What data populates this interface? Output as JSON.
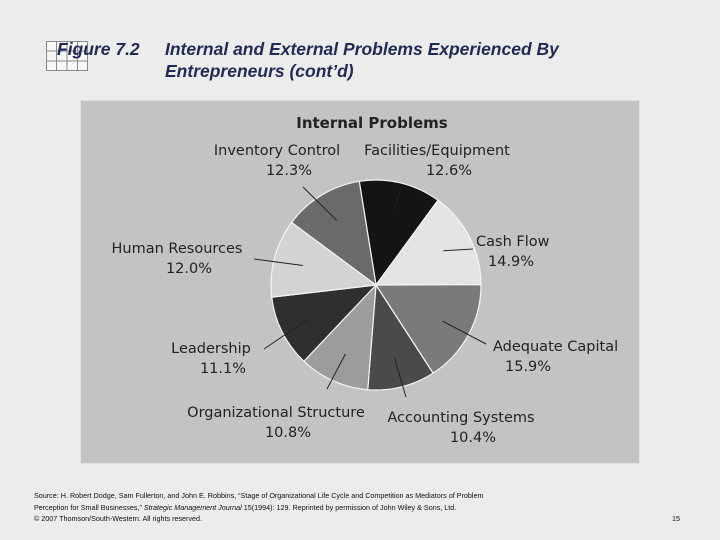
{
  "slide": {
    "title_number": "Figure 7.2",
    "title_line1": "Internal and External Problems Experienced By",
    "title_line2": "Entrepreneurs (cont’d)",
    "source_part1": "Source: H. Robert Dodge, Sam Fullerton, and John E. Robbins, “Stage of Organizational Life Cycle and Competition as Mediators of Problem",
    "source_part2a": "Perception for Small Businesses,”",
    "source_part2b": "Strategic Management Journal",
    "source_part2c": "15(1994): 129. Reprinted by permission of John Wiley & Sons, Ltd.",
    "copyright": "© 2007 Thomson/South-Western. All rights reserved.",
    "page_number": "15"
  },
  "chart_data": {
    "type": "pie",
    "title": "Internal Problems",
    "slices": [
      {
        "label": "Facilities/Equipment",
        "value": 12.6,
        "value_label": "12.6%",
        "color": "#141414"
      },
      {
        "label": "Cash Flow",
        "value": 14.9,
        "value_label": "14.9%",
        "color": "#e4e4e4"
      },
      {
        "label": "Adequate Capital",
        "value": 15.9,
        "value_label": "15.9%",
        "color": "#7a7a7a"
      },
      {
        "label": "Accounting Systems",
        "value": 10.4,
        "value_label": "10.4%",
        "color": "#4a4a4a"
      },
      {
        "label": "Organizational Structure",
        "value": 10.8,
        "value_label": "10.8%",
        "color": "#9c9c9c"
      },
      {
        "label": "Leadership",
        "value": 11.1,
        "value_label": "11.1%",
        "color": "#2f2f2f"
      },
      {
        "label": "Human Resources",
        "value": 12.0,
        "value_label": "12.0%",
        "color": "#d3d3d3"
      },
      {
        "label": "Inventory Control",
        "value": 12.3,
        "value_label": "12.3%",
        "color": "#6a6a6a"
      }
    ]
  },
  "colors": {
    "title": "#1f2a55",
    "slide_bg": "#ececec",
    "chart_bg": "#c3c3c3"
  }
}
